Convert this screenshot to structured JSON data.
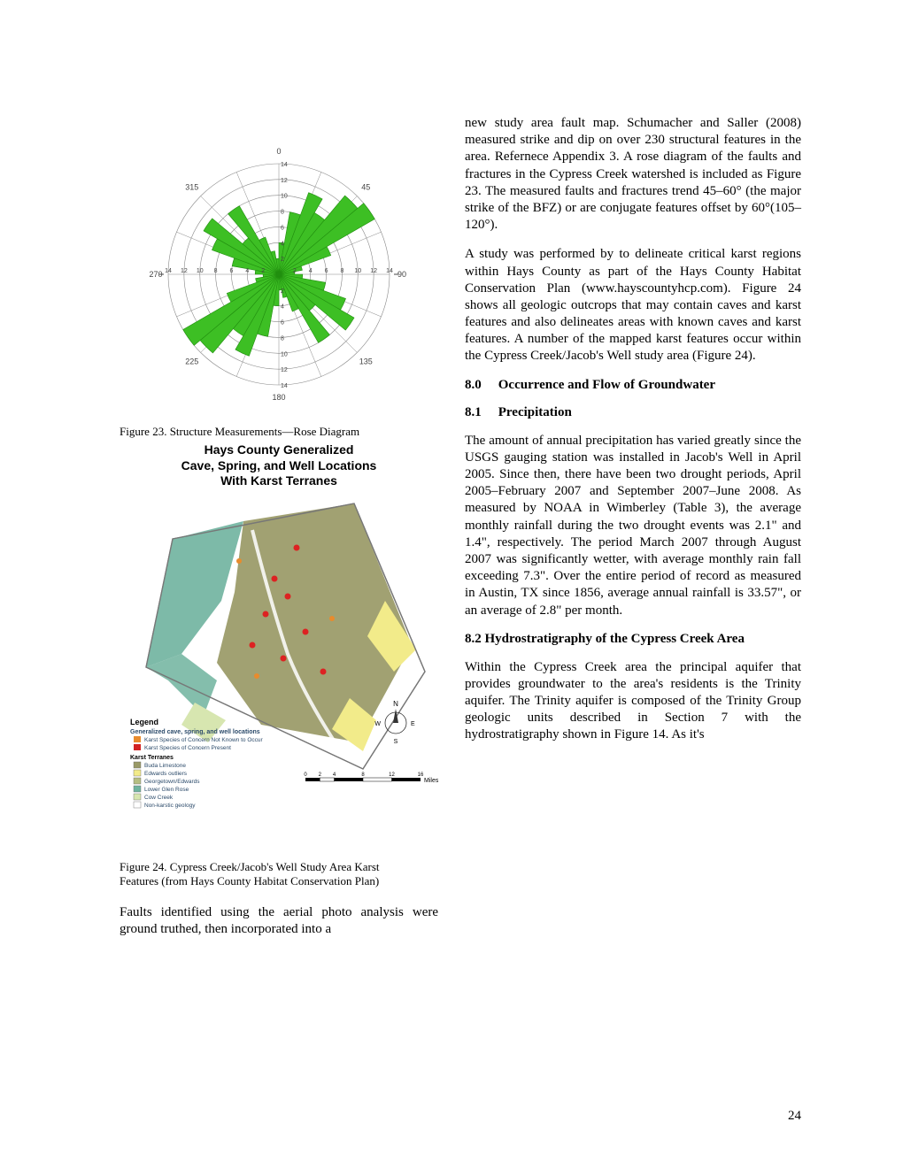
{
  "page_number": "24",
  "left": {
    "fig23_caption": "Figure 23. Structure Measurements—Rose Diagram",
    "rose_diagram": {
      "type": "rose",
      "colors": {
        "petal": "#3dbf24",
        "petal_stroke": "#218f0f",
        "grid": "#888888",
        "axis_text": "#444444",
        "background": "#ffffff"
      },
      "radial_ticks": [
        2,
        4,
        6,
        8,
        10,
        12,
        14
      ],
      "max_radius": 14,
      "angle_labels": [
        {
          "ang": 0,
          "label": "0"
        },
        {
          "ang": 45,
          "label": "45"
        },
        {
          "ang": 90,
          "label": "90"
        },
        {
          "ang": 135,
          "label": "135"
        },
        {
          "ang": 180,
          "label": "180"
        },
        {
          "ang": 225,
          "label": "225"
        },
        {
          "ang": 270,
          "label": "270"
        },
        {
          "ang": 315,
          "label": "315"
        }
      ],
      "axis_labels_270": [
        "14",
        "12",
        "10",
        "8",
        "6",
        "4",
        "2"
      ],
      "axis_labels_90": [
        "2",
        "4",
        "6",
        "8",
        "10",
        "12",
        "14"
      ],
      "bins_deg": 10,
      "petals": [
        {
          "start": 0,
          "len": 4
        },
        {
          "start": 10,
          "len": 8
        },
        {
          "start": 20,
          "len": 11
        },
        {
          "start": 30,
          "len": 9
        },
        {
          "start": 40,
          "len": 13
        },
        {
          "start": 50,
          "len": 14
        },
        {
          "start": 60,
          "len": 7
        },
        {
          "start": 70,
          "len": 3
        },
        {
          "start": 80,
          "len": 2
        },
        {
          "start": 90,
          "len": 3
        },
        {
          "start": 100,
          "len": 6
        },
        {
          "start": 110,
          "len": 9
        },
        {
          "start": 120,
          "len": 11
        },
        {
          "start": 130,
          "len": 6
        },
        {
          "start": 140,
          "len": 10
        },
        {
          "start": 150,
          "len": 5
        },
        {
          "start": 160,
          "len": 3
        },
        {
          "start": 170,
          "len": 2
        },
        {
          "start": 180,
          "len": 4
        },
        {
          "start": 190,
          "len": 8
        },
        {
          "start": 200,
          "len": 11
        },
        {
          "start": 210,
          "len": 9
        },
        {
          "start": 220,
          "len": 13
        },
        {
          "start": 230,
          "len": 14
        },
        {
          "start": 240,
          "len": 7
        },
        {
          "start": 250,
          "len": 3
        },
        {
          "start": 260,
          "len": 2
        },
        {
          "start": 270,
          "len": 3
        },
        {
          "start": 280,
          "len": 6
        },
        {
          "start": 290,
          "len": 9
        },
        {
          "start": 300,
          "len": 11
        },
        {
          "start": 310,
          "len": 6
        },
        {
          "start": 320,
          "len": 10
        },
        {
          "start": 330,
          "len": 5
        },
        {
          "start": 340,
          "len": 3
        },
        {
          "start": 350,
          "len": 2
        }
      ]
    },
    "map_title_l1": "Hays County Generalized",
    "map_title_l2": "Cave, Spring, and Well Locations",
    "map_title_l3": "With Karst Terranes",
    "map": {
      "colors": {
        "buda": "#999966",
        "edwards": "#f2eb8a",
        "georgetown": "#b5be82",
        "glenrose": "#6fb39e",
        "cowcreek": "#d7e6b0",
        "nonkarst": "#ffffff",
        "concern_red": "#d22",
        "concern_orange": "#e88b2d",
        "outline": "#777777",
        "text": "#2b4a6a"
      },
      "legend_title": "Legend",
      "legend_group1": "Generalized cave, spring, and well locations",
      "legend_items1": [
        {
          "color": "#e88b2d",
          "label": "Karst Species of Concern Not Known to Occur"
        },
        {
          "color": "#d22222",
          "label": "Karst Species of Concern Present"
        }
      ],
      "legend_group2": "Karst Terranes",
      "legend_items2": [
        {
          "color": "#999966",
          "label": "Buda Limestone"
        },
        {
          "color": "#f2eb8a",
          "label": "Edwards outliers"
        },
        {
          "color": "#b5be82",
          "label": "Georgetown/Edwards"
        },
        {
          "color": "#6fb39e",
          "label": "Lower Glen Rose"
        },
        {
          "color": "#d7e6b0",
          "label": "Cow Creek"
        },
        {
          "color": "#ffffff",
          "label": "Non-karstic geology"
        }
      ],
      "scalebar_ticks": [
        "0",
        "2",
        "4",
        "8",
        "12",
        "16"
      ],
      "scalebar_unit": "Miles",
      "compass": {
        "N": "N",
        "E": "E",
        "S": "S",
        "W": "W"
      }
    },
    "fig24_caption_l1": "Figure 24. Cypress Creek/Jacob's Well Study Area Karst",
    "fig24_caption_l2": "Features (from Hays County Habitat Conservation Plan)",
    "body_left": "Faults identified using the aerial photo analysis were ground truthed, then incorporated into a"
  },
  "right": {
    "p1": "new study area fault map. Schumacher and Saller (2008) measured strike and dip on over 230 structural features in the area. Refernece Appendix 3.  A rose diagram of the faults and fractures in the Cypress Creek watershed is included as Figure 23.  The measured faults and fractures trend 45–60° (the major strike of the BFZ) or are conjugate features offset by 60°(105–120°).",
    "p2": "A study was performed by to delineate critical karst regions within Hays County as part of the Hays County Habitat Conservation Plan (www.hayscountyhcp.com).  Figure 24 shows all geologic outcrops that may contain caves and karst features and also delineates areas with known caves and karst features.  A number of the mapped karst features occur within the Cypress Creek/Jacob's Well study area (Figure 24).",
    "h8_0_num": "8.0",
    "h8_0_txt": "Occurrence and Flow of Groundwater",
    "h8_1_num": "8.1",
    "h8_1_txt": "Precipitation",
    "p3": "The amount of annual precipitation has varied greatly since the USGS gauging station was installed in Jacob's Well in April 2005.   Since then, there have been two drought periods, April 2005–February 2007 and September 2007–June 2008. As measured by NOAA in Wimberley (Table 3), the average monthly rainfall during the two drought events was 2.1\" and 1.4\", respectively.  The period March 2007 through August 2007 was significantly wetter, with average monthly rain fall exceeding 7.3\".   Over the entire period of record as measured in Austin, TX since 1856, average annual rainfall is 33.57\", or an average of 2.8\" per month.",
    "h8_2": "8.2      Hydrostratigraphy  of  the  Cypress Creek Area",
    "p4": "Within the Cypress Creek area the principal aquifer that provides groundwater to the area's residents is the Trinity aquifer. The Trinity aquifer is composed of the Trinity Group geologic units described in Section 7 with the hydrostratigraphy shown in Figure 14. As it's"
  }
}
